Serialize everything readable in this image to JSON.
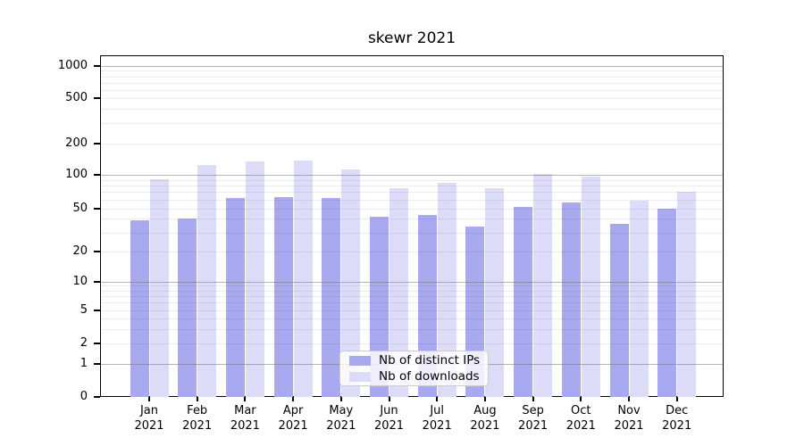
{
  "chart_data": {
    "type": "bar",
    "title": "skewr 2021",
    "categories": [
      "Jan 2021",
      "Feb 2021",
      "Mar 2021",
      "Apr 2021",
      "May 2021",
      "Jun 2021",
      "Jul 2021",
      "Aug 2021",
      "Sep 2021",
      "Oct 2021",
      "Nov 2021",
      "Dec 2021"
    ],
    "series": [
      {
        "name": "Nb of distinct IPs",
        "color": "#a9a9f0",
        "values": [
          39,
          40,
          62,
          63,
          62,
          42,
          43,
          34,
          51,
          56,
          36,
          50
        ]
      },
      {
        "name": "Nb of downloads",
        "color": "#dcdcf9",
        "values": [
          91,
          124,
          133,
          138,
          112,
          76,
          84,
          76,
          102,
          96,
          59,
          71
        ]
      }
    ],
    "xlabel": "",
    "ylabel": "",
    "yscale": "log-like (0 baseline, labeled ticks 0,1,2,5,10,20,50,100,200,500,1000)",
    "yticks": [
      0,
      1,
      2,
      5,
      10,
      20,
      50,
      100,
      200,
      500,
      1000
    ],
    "ylim": [
      0,
      1400
    ],
    "grid": "horizontal major and minor gridlines",
    "legend": {
      "entries": [
        "Nb of distinct IPs",
        "Nb of downloads"
      ],
      "position": "lower center"
    }
  }
}
